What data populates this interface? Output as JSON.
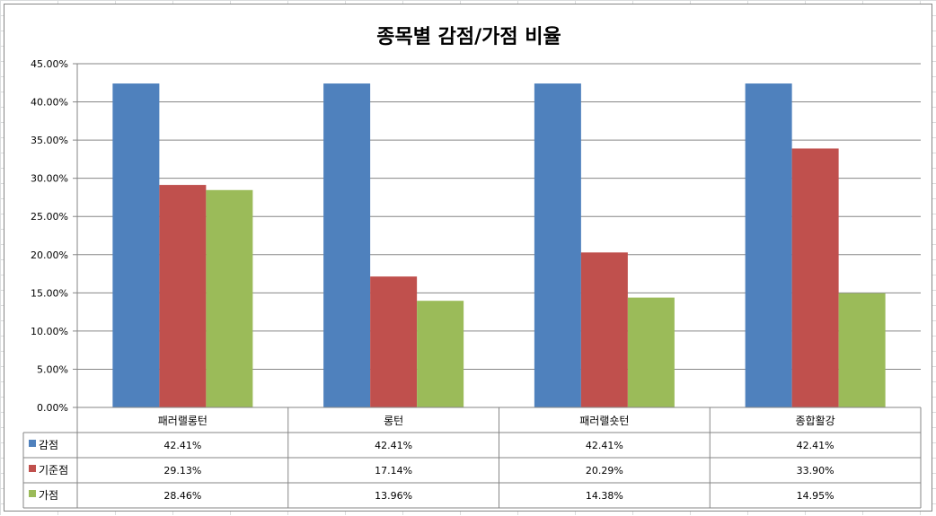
{
  "chart_data": {
    "type": "bar",
    "title": "종목별 감점/가점 비율",
    "categories": [
      "패러랠롱턴",
      "롱턴",
      "패러랠숏턴",
      "종합활강"
    ],
    "series": [
      {
        "name": "감점",
        "color": "#4f81bd",
        "values": [
          42.41,
          42.41,
          42.41,
          42.41
        ],
        "labels": [
          "42.41%",
          "42.41%",
          "42.41%",
          "42.41%"
        ]
      },
      {
        "name": "기준점",
        "color": "#c0504d",
        "values": [
          29.13,
          17.14,
          20.29,
          33.9
        ],
        "labels": [
          "29.13%",
          "17.14%",
          "20.29%",
          "33.90%"
        ]
      },
      {
        "name": "가점",
        "color": "#9bbb59",
        "values": [
          28.46,
          13.96,
          14.38,
          14.95
        ],
        "labels": [
          "28.46%",
          "13.96%",
          "14.38%",
          "14.95%"
        ]
      }
    ],
    "ylim": [
      0,
      45
    ],
    "yticks": [
      "0.00%",
      "5.00%",
      "10.00%",
      "15.00%",
      "20.00%",
      "25.00%",
      "30.00%",
      "35.00%",
      "40.00%",
      "45.00%"
    ],
    "grid": true,
    "legend": "data-table"
  }
}
